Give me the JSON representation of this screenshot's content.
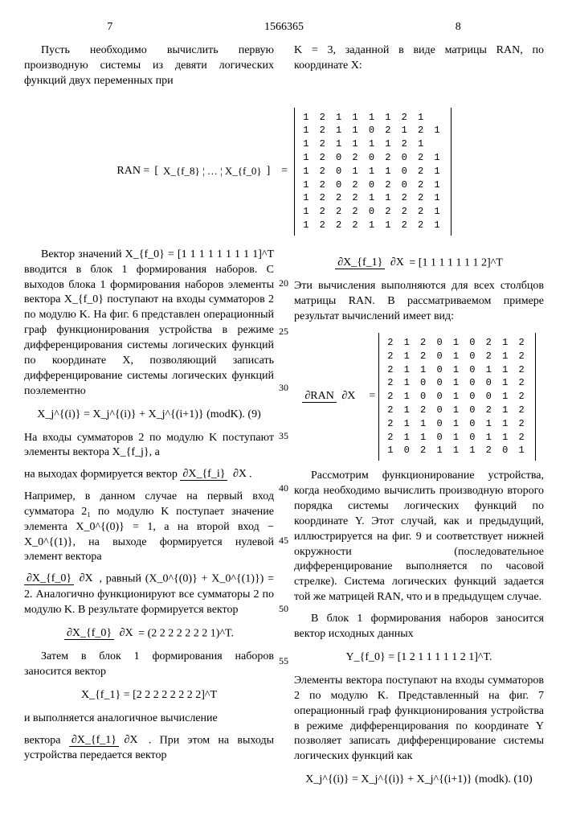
{
  "header": {
    "page_left": "7",
    "patent": "1566365",
    "page_right": "8"
  },
  "left": {
    "p1": "Пусть необходимо вычислить первую производную системы из девяти логических функций двух переменных при",
    "ran_label": "RAN =",
    "ran_inner": "X_{f_8} ¦ … ¦ X_{f_0}",
    "p2": "Вектор значений X_{f_0} = [1 1 1 1 1 1 1 1 1]^T вводится в блок 1 формирования наборов. С выходов блока 1 формирования наборов элементы вектора X_{f_0} поступают на входы сумматоров 2 по модулю K. На фиг. 6 представлен операционный граф функционирования устройства в режиме дифференцирования системы логических функций по координате X, позволяющий записать дифференцирование системы логических функций поэлементно",
    "formula1": "X_j^{(i)} = X_j^{(i)} + X_j^{(i+1)} (modK).   (9)",
    "p3": "На входы сумматоров 2 по модулю K поступают элементы вектора X_{f_j}, а",
    "p3b": "на выходах формируется вектор",
    "frac1_num": "∂X_{f_i}",
    "frac1_den": "∂X",
    "p4": "Например, в данном случае на первый вход сумматора 2₁ по модулю K поступает значение элемента X_0^{(0)} = 1, а на второй вход − X_0^{(1)}, на выходе формируется нулевой элемент вектора",
    "p4b": ", равный (X_0^{(0)} + X_0^{(1)}) = 2. Аналогично функционируют все сумматоры 2 по модулю K. В результате формируется вектор",
    "frac2_num": "∂X_{f_0}",
    "frac2_den": "∂X",
    "frac3_num": "∂X_{f_0}",
    "frac3_den": "∂X",
    "vec1": "= (2 2 2 2 2 2 2 1)^T.",
    "p5": "Затем в блок 1 формирования наборов заносится вектор",
    "vec2_label": "X_{f_1}",
    "vec2": "= [2 2 2 2 2 2 2 2]^T",
    "p6": "и выполняется аналогичное вычисление",
    "p6b": "вектора",
    "frac4_num": "∂X_{f_1}",
    "frac4_den": "∂X",
    "p6c": ". При этом на выходы устройства передается вектор"
  },
  "right": {
    "p1": "K = 3, заданной в виде матрицы RAN, по координате X:",
    "matrix1": [
      "1 2 1 1 1 1 2 1",
      "1 2 1 1 0 2 1 2 1",
      "1 2 1 1 1 1 2 1",
      "1 2 0 2 0 2 0 2 1",
      "1 2 0 1 1 1 0 2 1",
      "1 2 0 2 0 2 0 2 1",
      "1 2 2 2 1 1 2 2 1",
      "1 2 2 2 0 2 2 2 1",
      "1 2 2 2 1 1 2 2 1"
    ],
    "frac_dx_num": "∂X_{f_1}",
    "frac_dx_den": "∂X",
    "vec_dx": "= [1 1 1 1 1 1 1 2]^T",
    "p2": "Эти вычисления выполняются для всех столбцов матрицы RAN. В рассматриваемом примере результат вычислений имеет вид:",
    "frac_ran_num": "∂RAN",
    "frac_ran_den": "∂X",
    "matrix2": [
      "2 1 2 0 1 0 2 1 2",
      "2 1 2 0 1 0 2 1 2",
      "2 1 1 0 1 0 1 1 2",
      "2 1 0 0 1 0 0 1 2",
      "2 1 0 0 1 0 0 1 2",
      "2 1 2 0 1 0 2 1 2",
      "2 1 1 0 1 0 1 1 2",
      "2 1 1 0 1 0 1 1 2",
      "1 0 2 1 1 1 2 0 1"
    ],
    "p3": "Рассмотрим функционирование устройства, когда необходимо вычислить производную второго порядка системы логических функций по координате Y. Этот случай, как и предыдущий, иллюстрируется на фиг. 9 и соответствует нижней окружности (последовательное дифференцирование выполняется по часовой стрелке). Система логических функций задается той же матрицей RAN, что и в предыдущем случае.",
    "p4": "В блок 1 формирования наборов заносится вектор исходных данных",
    "vec3_label": "Y_{f_0}",
    "vec3": "= [1 2 1 1 1 1 1 2 1]^T.",
    "p5": "Элементы вектора поступают на входы сумматоров 2 по модулю K. Представленный на фиг. 7 операционный граф функционирования устройства в режиме дифференцирования по координате Y позволяет записать дифференцирование системы логических функций как",
    "formula2": "X_j^{(i)} = X_j^{(i)} + X_j^{(i+1)} (modk).   (10)"
  },
  "linenums": {
    "l20": "20",
    "l25": "25",
    "l30": "30",
    "l35": "35",
    "l40": "40",
    "l45": "45",
    "l50": "50",
    "l55": "55"
  }
}
